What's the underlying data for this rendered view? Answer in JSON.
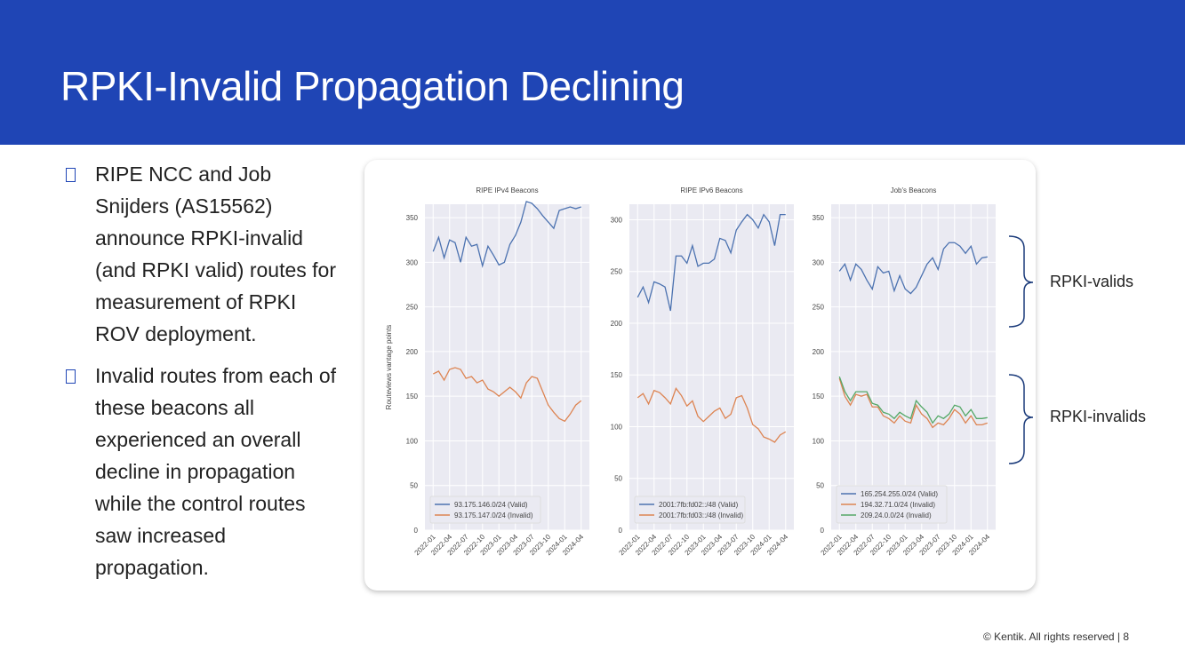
{
  "header": {
    "title": "RPKI-Invalid Propagation Declining"
  },
  "bullets": [
    "RIPE NCC and Job Snijders (AS15562) announce RPKI-invalid (and RPKI valid) routes for measurement of RPKI ROV deployment.",
    "Invalid routes from each of these beacons all experienced an overall decline in propagation while the control routes saw increased propagation."
  ],
  "annotations": [
    "RPKI-valids",
    "RPKI-invalids"
  ],
  "footer": "© Kentik. All rights reserved | 8",
  "chart_data": [
    {
      "type": "line",
      "title": "RIPE IPv4 Beacons",
      "ylabel": "Routeviews vantage points",
      "categories": [
        "2022-01",
        null,
        null,
        "2022-04",
        null,
        null,
        "2022-07",
        null,
        null,
        "2022-10",
        null,
        null,
        "2023-01",
        null,
        null,
        "2023-04",
        null,
        null,
        "2023-07",
        null,
        null,
        "2023-10",
        null,
        null,
        "2024-01",
        null,
        null,
        "2024-04"
      ],
      "series": [
        {
          "name": "93.175.146.0/24 (Valid)",
          "color": "#4c72b0",
          "values": [
            312,
            328,
            305,
            325,
            322,
            300,
            328,
            318,
            320,
            296,
            318,
            308,
            297,
            300,
            320,
            330,
            345,
            368,
            366,
            360,
            352,
            345,
            338,
            358,
            360,
            362,
            360,
            362
          ]
        },
        {
          "name": "93.175.147.0/24 (Invalid)",
          "color": "#dd8452",
          "values": [
            175,
            178,
            168,
            180,
            182,
            180,
            170,
            172,
            165,
            168,
            158,
            155,
            150,
            155,
            160,
            155,
            148,
            165,
            172,
            170,
            155,
            140,
            132,
            125,
            122,
            130,
            140,
            145
          ]
        }
      ],
      "ylim": [
        0,
        365
      ],
      "yticks": [
        0,
        50,
        100,
        150,
        200,
        250,
        300,
        350
      ],
      "grid": true,
      "legend": "lower left"
    },
    {
      "type": "line",
      "title": "RIPE IPv6 Beacons",
      "categories": [
        "2022-01",
        null,
        null,
        "2022-04",
        null,
        null,
        "2022-07",
        null,
        null,
        "2022-10",
        null,
        null,
        "2023-01",
        null,
        null,
        "2023-04",
        null,
        null,
        "2023-07",
        null,
        null,
        "2023-10",
        null,
        null,
        "2024-01",
        null,
        null,
        "2024-04"
      ],
      "series": [
        {
          "name": "2001:7fb:fd02::/48 (Valid)",
          "color": "#4c72b0",
          "values": [
            225,
            235,
            220,
            240,
            238,
            235,
            212,
            265,
            265,
            258,
            275,
            255,
            258,
            258,
            262,
            282,
            280,
            268,
            290,
            298,
            305,
            300,
            292,
            305,
            298,
            275,
            305,
            305
          ]
        },
        {
          "name": "2001:7fb:fd03::/48 (Invalid)",
          "color": "#dd8452",
          "values": [
            128,
            132,
            122,
            135,
            133,
            128,
            122,
            137,
            130,
            120,
            125,
            110,
            105,
            110,
            115,
            118,
            108,
            112,
            128,
            130,
            118,
            102,
            98,
            90,
            88,
            85,
            92,
            95
          ]
        }
      ],
      "ylim": [
        0,
        315
      ],
      "yticks": [
        0,
        50,
        100,
        150,
        200,
        250,
        300
      ],
      "grid": true,
      "legend": "lower left"
    },
    {
      "type": "line",
      "title": "Job's Beacons",
      "categories": [
        "2022-01",
        null,
        null,
        "2022-04",
        null,
        null,
        "2022-07",
        null,
        null,
        "2022-10",
        null,
        null,
        "2023-01",
        null,
        null,
        "2023-04",
        null,
        null,
        "2023-07",
        null,
        null,
        "2023-10",
        null,
        null,
        "2024-01",
        null,
        null,
        "2024-04"
      ],
      "series": [
        {
          "name": "165.254.255.0/24 (Valid)",
          "color": "#4c72b0",
          "values": [
            290,
            298,
            280,
            298,
            292,
            280,
            270,
            295,
            288,
            290,
            268,
            285,
            270,
            265,
            272,
            285,
            298,
            305,
            292,
            315,
            322,
            322,
            318,
            310,
            318,
            298,
            305,
            306
          ]
        },
        {
          "name": "194.32.71.0/24 (Invalid)",
          "color": "#dd8452",
          "values": [
            170,
            150,
            140,
            152,
            150,
            152,
            138,
            138,
            128,
            125,
            120,
            128,
            122,
            120,
            140,
            130,
            125,
            115,
            120,
            118,
            125,
            135,
            130,
            120,
            128,
            118,
            118,
            120
          ]
        },
        {
          "name": "209.24.0.0/24 (Invalid)",
          "color": "#55a868",
          "values": [
            172,
            155,
            145,
            155,
            155,
            155,
            142,
            140,
            132,
            130,
            125,
            132,
            128,
            125,
            145,
            138,
            132,
            120,
            128,
            125,
            130,
            140,
            138,
            128,
            135,
            125,
            125,
            126
          ]
        }
      ],
      "ylim": [
        0,
        365
      ],
      "yticks": [
        0,
        50,
        100,
        150,
        200,
        250,
        300,
        350
      ],
      "grid": true,
      "legend": "lower left"
    }
  ]
}
